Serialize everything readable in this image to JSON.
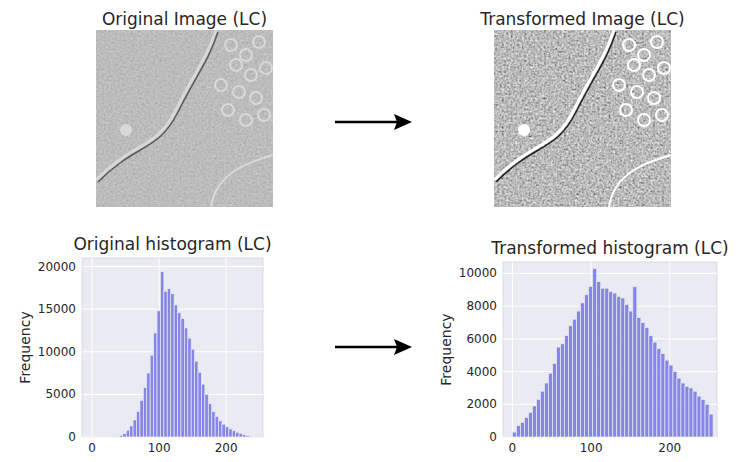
{
  "images": [
    {
      "title": "Original Image (LC)"
    },
    {
      "title": "Transformed Image (LC)"
    }
  ],
  "chart_data": [
    {
      "type": "histogram",
      "title": "Original histogram (LC)",
      "y_label": "Frequency",
      "color": "#7b7be8",
      "grid": true,
      "bins": [
        0,
        5.1,
        10.2,
        15.3,
        20.4,
        25.5,
        30.6,
        35.7,
        40.8,
        45.9,
        51,
        56.1,
        61.2,
        66.3,
        71.4,
        76.5,
        81.6,
        86.7,
        91.8,
        96.9,
        102,
        107.1,
        112.2,
        117.3,
        122.4,
        127.5,
        132.6,
        137.7,
        142.8,
        147.9,
        153,
        158.1,
        163.2,
        168.3,
        173.4,
        178.5,
        183.6,
        188.7,
        193.8,
        198.9,
        204,
        209.1,
        214.2,
        219.3,
        224.4,
        229.5,
        234.6,
        239.7,
        244.8,
        249.9,
        255
      ],
      "values": [
        0,
        0,
        0,
        0,
        0,
        0,
        20,
        80,
        200,
        400,
        800,
        1300,
        2000,
        3000,
        4300,
        5800,
        7500,
        9600,
        12200,
        14800,
        19400,
        17100,
        17400,
        16800,
        15500,
        14600,
        13900,
        12800,
        11600,
        10300,
        8900,
        7600,
        6200,
        5000,
        3900,
        3000,
        2400,
        1900,
        1500,
        1200,
        950,
        750,
        550,
        400,
        280,
        180,
        110,
        60,
        30,
        15
      ],
      "xlim": [
        -15,
        255
      ],
      "xticks": [
        0,
        100,
        200
      ],
      "ylim": [
        0,
        21000
      ],
      "yticks": [
        0,
        5000,
        10000,
        15000,
        20000
      ]
    },
    {
      "type": "histogram",
      "title": "Transformed histogram (LC)",
      "y_label": "Frequency",
      "color": "#7b7be8",
      "grid": true,
      "bins": [
        0,
        5.1,
        10.2,
        15.3,
        20.4,
        25.5,
        30.6,
        35.7,
        40.8,
        45.9,
        51,
        56.1,
        61.2,
        66.3,
        71.4,
        76.5,
        81.6,
        86.7,
        91.8,
        96.9,
        102,
        107.1,
        112.2,
        117.3,
        122.4,
        127.5,
        132.6,
        137.7,
        142.8,
        147.9,
        153,
        158.1,
        163.2,
        168.3,
        173.4,
        178.5,
        183.6,
        188.7,
        193.8,
        198.9,
        204,
        209.1,
        214.2,
        219.3,
        224.4,
        229.5,
        234.6,
        239.7,
        244.8,
        249.9,
        255
      ],
      "values": [
        300,
        700,
        900,
        1200,
        1500,
        1900,
        2300,
        2800,
        3300,
        3900,
        4500,
        5500,
        5700,
        6200,
        6800,
        7200,
        7700,
        8200,
        8700,
        9200,
        10300,
        9500,
        9100,
        9100,
        8900,
        8800,
        8600,
        8500,
        8100,
        7700,
        9200,
        7300,
        7000,
        6700,
        6200,
        5800,
        5400,
        5100,
        4700,
        4400,
        4000,
        3600,
        3300,
        3100,
        3000,
        2800,
        2500,
        2300,
        2000,
        1400
      ],
      "xlim": [
        -12,
        260
      ],
      "xticks": [
        0,
        100,
        200
      ],
      "ylim": [
        0,
        10700
      ],
      "yticks": [
        0,
        2000,
        4000,
        6000,
        8000,
        10000
      ]
    }
  ]
}
